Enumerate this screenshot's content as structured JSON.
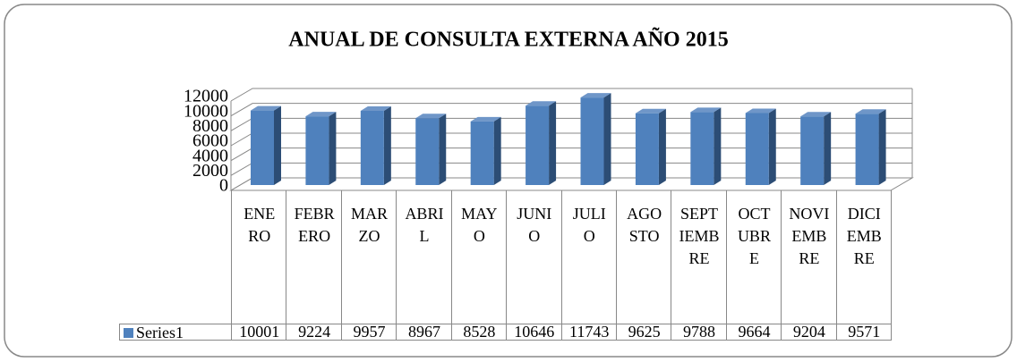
{
  "chart_data": {
    "type": "bar3d",
    "title": "ANUAL  DE CONSULTA EXTERNA  AÑO 2015",
    "categories": [
      "ENERO",
      "FEBRERO",
      "MARZO",
      "ABRIL",
      "MAYO",
      "JUNIO",
      "JULIO",
      "AGOSTO",
      "SEPTIEMBRE",
      "OCTUBRE",
      "NOVIEMBRE",
      "DICIEMBRE"
    ],
    "series": [
      {
        "name": "Series1",
        "color": "#4f81bd",
        "values": [
          10001,
          9224,
          9957,
          8967,
          8528,
          10646,
          11743,
          9625,
          9788,
          9664,
          9204,
          9571
        ]
      }
    ],
    "ylim": [
      0,
      12000
    ],
    "yticks": [
      0,
      2000,
      4000,
      6000,
      8000,
      10000,
      12000
    ],
    "grid": true,
    "data_table": true
  }
}
